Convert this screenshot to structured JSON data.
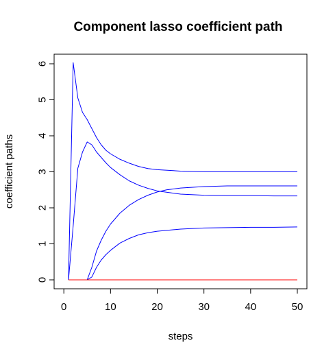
{
  "chart_data": {
    "type": "line",
    "title": "Component lasso coefficient path",
    "xlabel": "steps",
    "ylabel": "coefficient paths",
    "xlim": [
      1,
      50
    ],
    "ylim": [
      0,
      6
    ],
    "x_ticks": [
      0,
      10,
      20,
      30,
      40,
      50
    ],
    "y_ticks": [
      0,
      1,
      2,
      3,
      4,
      5,
      6
    ],
    "grid": false,
    "legend": "none",
    "series": [
      {
        "color": "#0000ff",
        "x": [
          1,
          2,
          3,
          4,
          5,
          6,
          7,
          8,
          9,
          10,
          12,
          14,
          16,
          18,
          20,
          25,
          30,
          35,
          40,
          45,
          50
        ],
        "values": [
          0,
          6.03,
          5.05,
          4.65,
          4.45,
          4.2,
          3.95,
          3.75,
          3.6,
          3.5,
          3.35,
          3.24,
          3.15,
          3.09,
          3.06,
          3.02,
          3.0,
          3.0,
          3.0,
          3.0,
          3.0
        ]
      },
      {
        "color": "#0000ff",
        "x": [
          1,
          2,
          3,
          4,
          5,
          6,
          7,
          8,
          9,
          10,
          12,
          14,
          16,
          18,
          20,
          25,
          30,
          35,
          40,
          45,
          50
        ],
        "values": [
          0,
          1.5,
          3.1,
          3.55,
          3.83,
          3.75,
          3.55,
          3.4,
          3.25,
          3.12,
          2.92,
          2.75,
          2.63,
          2.54,
          2.47,
          2.38,
          2.35,
          2.34,
          2.34,
          2.33,
          2.33
        ]
      },
      {
        "color": "#0000ff",
        "x": [
          1,
          5,
          6,
          7,
          8,
          9,
          10,
          12,
          14,
          16,
          18,
          20,
          22,
          25,
          30,
          35,
          40,
          45,
          50
        ],
        "values": [
          0,
          0,
          0.35,
          0.8,
          1.1,
          1.35,
          1.55,
          1.85,
          2.07,
          2.23,
          2.35,
          2.44,
          2.5,
          2.55,
          2.59,
          2.61,
          2.61,
          2.61,
          2.61
        ]
      },
      {
        "color": "#0000ff",
        "x": [
          1,
          5,
          6,
          7,
          8,
          9,
          10,
          12,
          14,
          16,
          18,
          20,
          25,
          30,
          35,
          40,
          45,
          50
        ],
        "values": [
          0,
          0,
          0.08,
          0.35,
          0.55,
          0.7,
          0.82,
          1.02,
          1.15,
          1.25,
          1.31,
          1.35,
          1.41,
          1.44,
          1.45,
          1.46,
          1.46,
          1.47
        ]
      },
      {
        "color": "#ff0000",
        "x": [
          1,
          50
        ],
        "values": [
          0,
          0
        ]
      }
    ]
  }
}
